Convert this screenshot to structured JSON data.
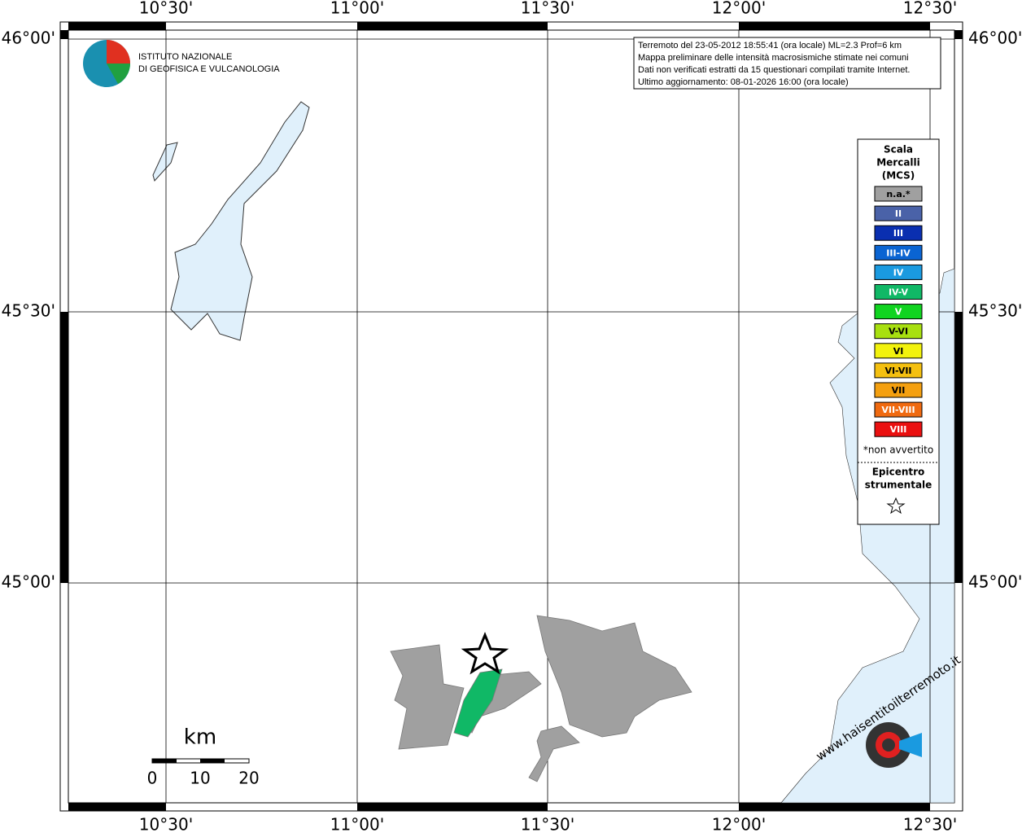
{
  "map": {
    "lon_labels": [
      "10°30'",
      "11°00'",
      "11°30'",
      "12°00'",
      "12°30'"
    ],
    "lat_labels": [
      "46°00'",
      "45°30'",
      "45°00'"
    ]
  },
  "header": {
    "institute": [
      "ISTITUTO NAZIONALE",
      "DI GEOFISICA E VULCANOLOGIA"
    ]
  },
  "info": [
    "Terremoto del 23-05-2012 18:55:41 (ora locale) ML=2.3 Prof=6 km",
    "Mappa preliminare delle intensità macrosismiche stimate nei comuni",
    "Dati non verificati estratti da 15 questionari compilati tramite Internet.",
    "Ultimo aggiornamento: 08-01-2026 16:00 (ora locale)"
  ],
  "legend": {
    "title": [
      "Scala",
      "Mercalli",
      "(MCS)"
    ],
    "items": [
      {
        "label": "n.a.*",
        "color": "#a0a0a0"
      },
      {
        "label": "II",
        "color": "#4a62a8"
      },
      {
        "label": "III",
        "color": "#0a2fb0"
      },
      {
        "label": "III-IV",
        "color": "#0a64d2"
      },
      {
        "label": "IV",
        "color": "#1a9ae0"
      },
      {
        "label": "IV-V",
        "color": "#10b866"
      },
      {
        "label": "V",
        "color": "#10d420"
      },
      {
        "label": "V-VI",
        "color": "#a8e010"
      },
      {
        "label": "VI",
        "color": "#f2f20c"
      },
      {
        "label": "VI-VII",
        "color": "#f4c010"
      },
      {
        "label": "VII",
        "color": "#f4a010"
      },
      {
        "label": "VII-VIII",
        "color": "#f06a10"
      },
      {
        "label": "VIII",
        "color": "#ea1010"
      }
    ],
    "note": "*non avvertito",
    "epicenter": [
      "Epicentro",
      "strumentale"
    ]
  },
  "scale": {
    "unit": "km",
    "ticks": [
      "0",
      "10",
      "20"
    ]
  },
  "badge": "www.haisentitoilterremoto.it"
}
